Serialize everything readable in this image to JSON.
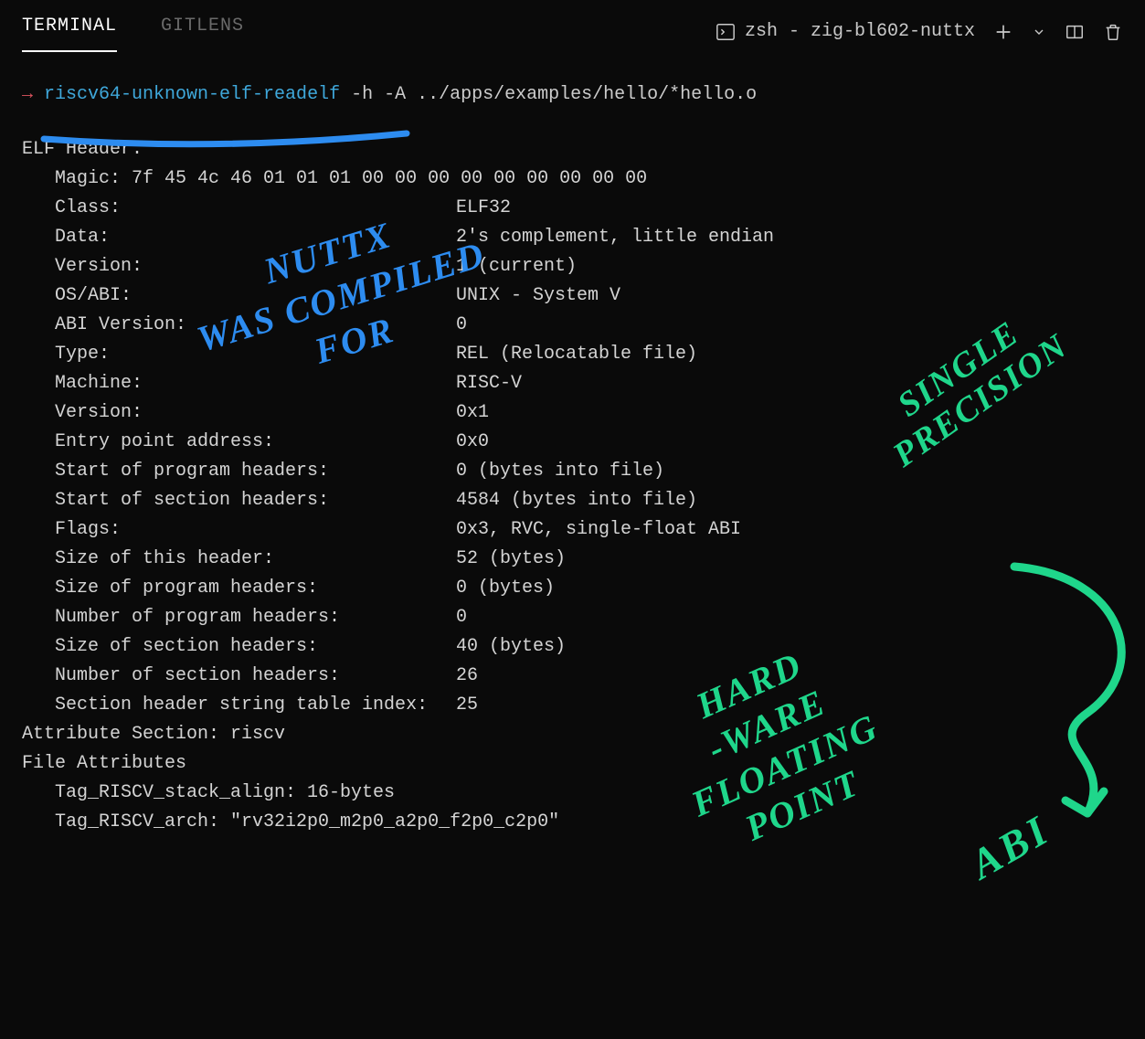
{
  "tabs": {
    "terminal": "TERMINAL",
    "gitlens": "GITLENS"
  },
  "shell": {
    "icon_name": "terminal-box-icon",
    "label": "zsh - zig-bl602-nuttx"
  },
  "prompt": {
    "arrow": "→",
    "command": "riscv64-unknown-elf-readelf",
    "args": " -h -A ../apps/examples/hello/*hello.o"
  },
  "elf_header_title": "ELF Header:",
  "elf_rows": [
    {
      "key": "Magic:   ",
      "val": "7f 45 4c 46 01 01 01 00 00 00 00 00 00 00 00 00",
      "inline": true
    },
    {
      "key": "Class:",
      "val": "ELF32"
    },
    {
      "key": "Data:",
      "val": "2's complement, little endian"
    },
    {
      "key": "Version:",
      "val": "1 (current)"
    },
    {
      "key": "OS/ABI:",
      "val": "UNIX - System V"
    },
    {
      "key": "ABI Version:",
      "val": "0"
    },
    {
      "key": "Type:",
      "val": "REL (Relocatable file)"
    },
    {
      "key": "Machine:",
      "val": "RISC-V"
    },
    {
      "key": "Version:",
      "val": "0x1"
    },
    {
      "key": "Entry point address:",
      "val": "0x0"
    },
    {
      "key": "Start of program headers:",
      "val": "0 (bytes into file)"
    },
    {
      "key": "Start of section headers:",
      "val": "4584 (bytes into file)"
    },
    {
      "key": "Flags:",
      "val": "0x3, RVC, single-float ABI"
    },
    {
      "key": "Size of this header:",
      "val": "52 (bytes)"
    },
    {
      "key": "Size of program headers:",
      "val": "0 (bytes)"
    },
    {
      "key": "Number of program headers:",
      "val": "0"
    },
    {
      "key": "Size of section headers:",
      "val": "40 (bytes)"
    },
    {
      "key": "Number of section headers:",
      "val": "26"
    },
    {
      "key": "Section header string table index:",
      "val": "25",
      "tight": true
    }
  ],
  "attr_section": "Attribute Section: riscv",
  "file_attr_title": "File Attributes",
  "file_attrs": [
    "Tag_RISCV_stack_align: 16-bytes",
    "Tag_RISCV_arch: \"rv32i2p0_m2p0_a2p0_f2p0_c2p0\""
  ],
  "annotations": {
    "blue": "NUTTX\nWAS COMPILED\nFOR",
    "green1": "SINGLE\nPRECISION",
    "green2": "HARD\n-WARE\nFLOATING\nPOINT",
    "green3": "ABI"
  },
  "colors": {
    "bg": "#0a0a0a",
    "text": "#d4d4d4",
    "cmd": "#3fa8db",
    "arrow": "#e05561",
    "ann_blue": "#2d8cf0",
    "ann_green": "#1fd68b",
    "tab_inactive": "#6a6a6a",
    "tab_active": "#ffffff"
  }
}
